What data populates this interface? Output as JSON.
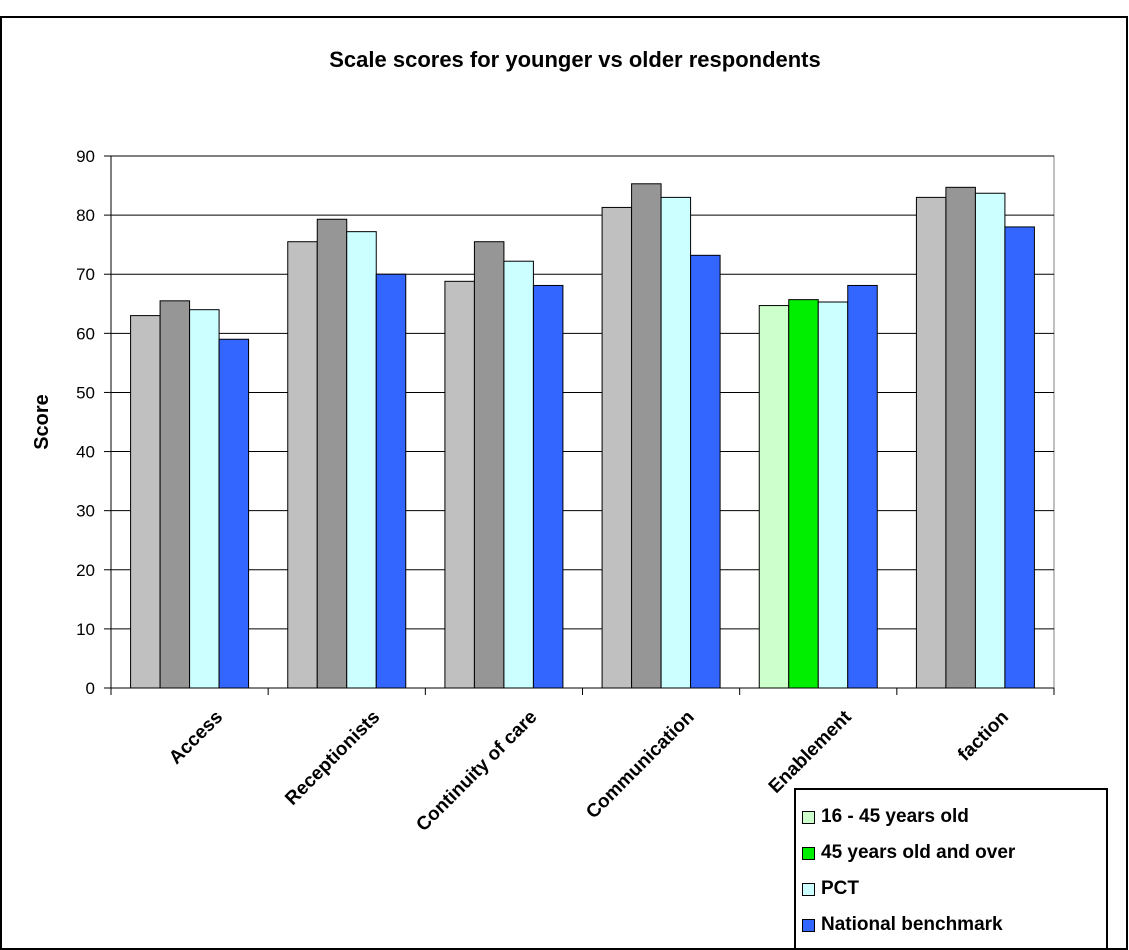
{
  "chart_data": {
    "type": "bar",
    "title": "Scale scores for younger vs older respondents",
    "ylabel": "Score",
    "xlabel": "",
    "ylim": [
      0,
      90
    ],
    "yticks": [
      0,
      10,
      20,
      30,
      40,
      50,
      60,
      70,
      80,
      90
    ],
    "grid": true,
    "legend_position": "bottom-right",
    "categories": [
      "Access",
      "Receptionists",
      "Continuity of care",
      "Communication",
      "Enablement",
      "faction"
    ],
    "series": [
      {
        "name": "16 - 45 years old",
        "color": "#ccffcc",
        "values": [
          63,
          75.5,
          68.8,
          81.3,
          64.7,
          83
        ]
      },
      {
        "name": "45 years old and over",
        "color": "#00ee00",
        "values": [
          65.5,
          79.3,
          75.5,
          85.3,
          65.7,
          84.7
        ]
      },
      {
        "name": "PCT",
        "color": "#ccffff",
        "values": [
          64,
          77.2,
          72.2,
          83,
          65.3,
          83.7
        ]
      },
      {
        "name": "National benchmark",
        "color": "#3366ff",
        "values": [
          59,
          70,
          68.1,
          73.2,
          68.1,
          78
        ]
      }
    ],
    "inactive_colors": [
      "#c0c0c0",
      "#969696",
      "#ccffff",
      "#3366ff"
    ],
    "highlight_category_index": 4
  }
}
